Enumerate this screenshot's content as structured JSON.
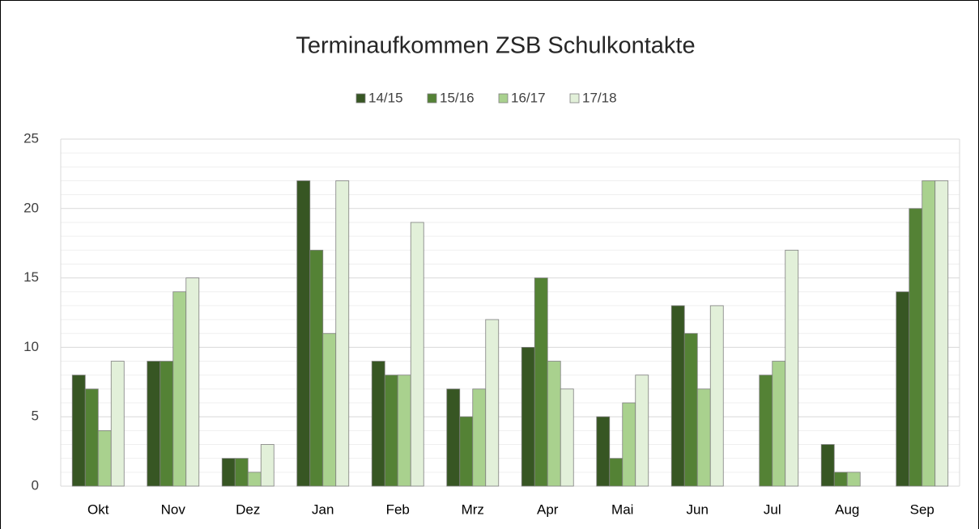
{
  "chart_data": {
    "type": "bar",
    "title": "Terminaufkommen ZSB Schulkontakte",
    "categories": [
      "Okt",
      "Nov",
      "Dez",
      "Jan",
      "Feb",
      "Mrz",
      "Apr",
      "Mai",
      "Jun",
      "Jul",
      "Aug",
      "Sep"
    ],
    "series": [
      {
        "name": "14/15",
        "color": "#375623",
        "values": [
          8,
          9,
          2,
          22,
          9,
          7,
          10,
          5,
          13,
          null,
          3,
          14
        ]
      },
      {
        "name": "15/16",
        "color": "#548235",
        "values": [
          7,
          9,
          2,
          17,
          8,
          5,
          15,
          2,
          11,
          8,
          1,
          20
        ]
      },
      {
        "name": "16/17",
        "color": "#a9d18e",
        "values": [
          4,
          14,
          1,
          11,
          8,
          7,
          9,
          6,
          7,
          9,
          1,
          22
        ]
      },
      {
        "name": "17/18",
        "color": "#e2f0d9",
        "values": [
          9,
          15,
          3,
          22,
          19,
          12,
          7,
          8,
          13,
          17,
          null,
          22
        ]
      }
    ],
    "ylim": [
      0,
      25
    ],
    "yticks": [
      0,
      5,
      10,
      15,
      20,
      25
    ],
    "grid": true,
    "legend": "top"
  }
}
